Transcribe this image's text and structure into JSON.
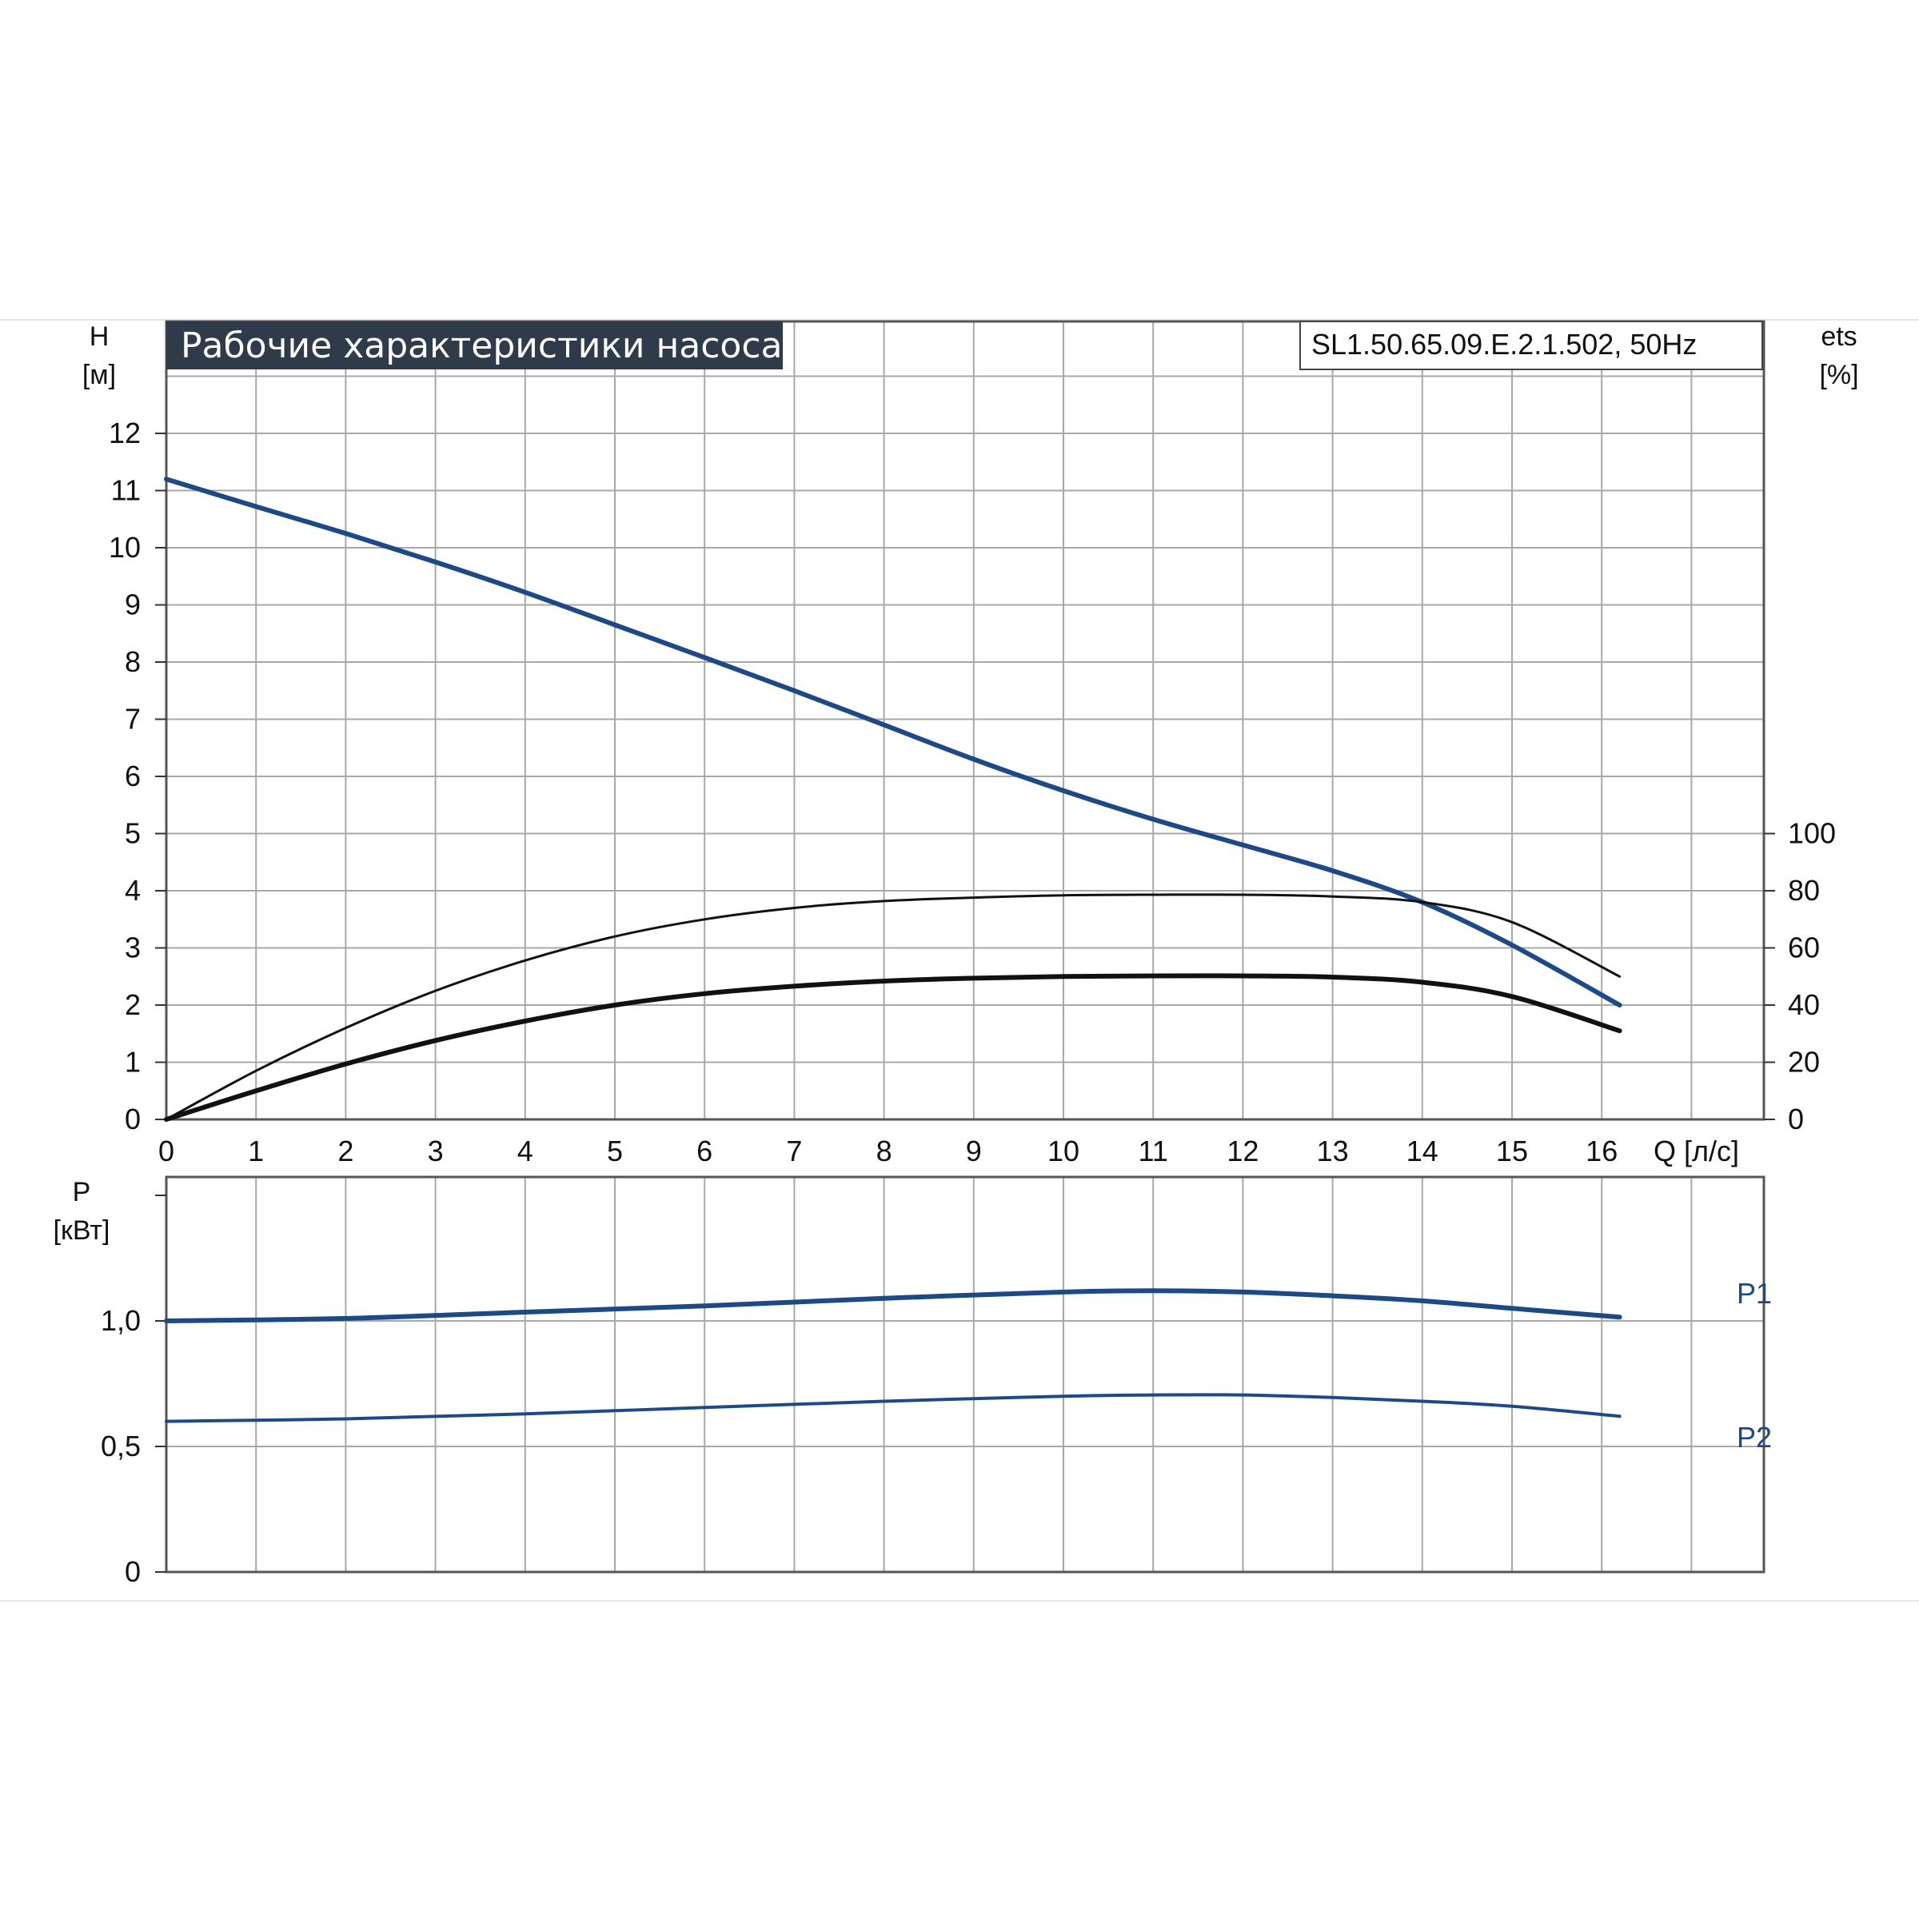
{
  "header": {
    "title": "Рабочие характеристики насоса",
    "model": "SL1.50.65.09.E.2.1.502, 50Hz"
  },
  "colors": {
    "title_bg": "#2f3a4a",
    "curve_blue": "#1d4a86",
    "curve_black": "#111111",
    "grid": "#a8a8a8"
  },
  "chart_data": [
    {
      "type": "line",
      "panel": "main",
      "xlabel": "Q [л/с]",
      "ylabel_line1": "H",
      "ylabel_line2": "[м]",
      "y2label_line1": "ets",
      "y2label_line2": "[%]",
      "xlim": [
        0,
        17.8
      ],
      "ylim": [
        0,
        13
      ],
      "y2lim": [
        0,
        100
      ],
      "x_ticks": [
        "0",
        "1",
        "2",
        "3",
        "4",
        "5",
        "6",
        "7",
        "8",
        "9",
        "10",
        "11",
        "12",
        "13",
        "14",
        "15",
        "16"
      ],
      "y_ticks": [
        "0",
        "1",
        "2",
        "3",
        "4",
        "5",
        "6",
        "7",
        "8",
        "9",
        "10",
        "11",
        "12"
      ],
      "y2_ticks": [
        "0",
        "20",
        "40",
        "60",
        "80",
        "100"
      ],
      "grid": true,
      "series": [
        {
          "color": "blue",
          "x": [
            0,
            1,
            2,
            3,
            4,
            5,
            6,
            7,
            8,
            9,
            10,
            11,
            12,
            13,
            14,
            15,
            16.2
          ],
          "y": [
            11.2,
            10.72,
            10.25,
            9.75,
            9.22,
            8.65,
            8.08,
            7.5,
            6.9,
            6.3,
            5.75,
            5.25,
            4.8,
            4.35,
            3.8,
            3.05,
            2.0
          ]
        },
        {
          "color": "black-thin",
          "x": [
            0,
            1,
            2,
            3,
            4,
            5,
            6,
            7,
            8,
            9,
            10,
            11,
            12,
            13,
            14,
            15,
            16.2
          ],
          "y": [
            0,
            0.85,
            1.6,
            2.25,
            2.78,
            3.2,
            3.5,
            3.7,
            3.82,
            3.88,
            3.92,
            3.93,
            3.93,
            3.9,
            3.8,
            3.45,
            2.5
          ]
        },
        {
          "color": "black-thick",
          "x": [
            0,
            1,
            2,
            3,
            4,
            5,
            6,
            7,
            8,
            9,
            10,
            11,
            12,
            13,
            14,
            15,
            16.2
          ],
          "y": [
            0,
            0.5,
            0.97,
            1.38,
            1.72,
            2.0,
            2.2,
            2.33,
            2.42,
            2.47,
            2.5,
            2.51,
            2.51,
            2.49,
            2.4,
            2.15,
            1.55
          ]
        }
      ]
    },
    {
      "type": "line",
      "panel": "power",
      "ylabel_line1": "P",
      "ylabel_line2": "[кВт]",
      "xlim": [
        0,
        17.8
      ],
      "ylim": [
        0,
        1.5
      ],
      "y_ticks": [
        "0",
        "0,5",
        "1,0"
      ],
      "grid": true,
      "series": [
        {
          "name": "P1",
          "x": [
            0,
            2,
            4,
            6,
            8,
            10,
            11,
            12,
            13,
            14,
            15,
            16.2
          ],
          "y": [
            1.0,
            1.01,
            1.035,
            1.06,
            1.09,
            1.115,
            1.12,
            1.115,
            1.1,
            1.08,
            1.05,
            1.015
          ]
        },
        {
          "name": "P2",
          "x": [
            0,
            2,
            4,
            6,
            8,
            10,
            11,
            12,
            13,
            14,
            15,
            16.2
          ],
          "y": [
            0.6,
            0.61,
            0.63,
            0.655,
            0.68,
            0.7,
            0.705,
            0.705,
            0.695,
            0.68,
            0.66,
            0.62
          ]
        }
      ]
    }
  ]
}
